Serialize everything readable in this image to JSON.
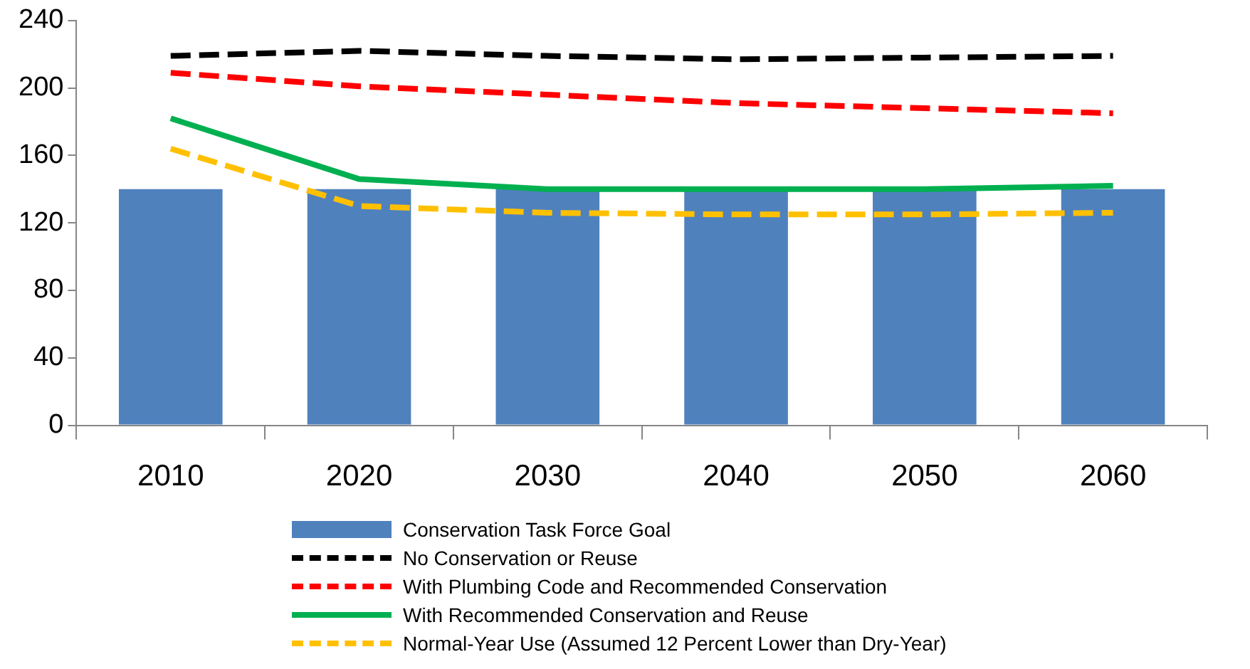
{
  "chart_data": {
    "type": "bar",
    "categories": [
      "2010",
      "2020",
      "2030",
      "2040",
      "2050",
      "2060"
    ],
    "ylim": [
      0,
      240
    ],
    "yticks": [
      0,
      40,
      80,
      120,
      160,
      200,
      240
    ],
    "grid": false,
    "legend": "bottom",
    "series": [
      {
        "name": "Conservation Task Force Goal",
        "color": "#4f81bd",
        "values": [
          140,
          140,
          140,
          140,
          140,
          140
        ]
      },
      {
        "name": "No Conservation or Reuse",
        "type": "line",
        "color": "#000000",
        "line_style": "dashed",
        "values": [
          219,
          222,
          219,
          217,
          218,
          219
        ]
      },
      {
        "name": "With Plumbing Code and Recommended Conservation",
        "type": "line",
        "color": "#ff0000",
        "line_style": "dashed",
        "values": [
          209,
          201,
          196,
          191,
          188,
          185
        ]
      },
      {
        "name": "With Recommended Conservation and Reuse",
        "type": "line",
        "color": "#00b050",
        "line_style": "solid",
        "values": [
          182,
          146,
          140,
          140,
          140,
          142
        ]
      },
      {
        "name": "Normal-Year Use (Assumed 12 Percent Lower than Dry-Year)",
        "type": "line",
        "color": "#ffc000",
        "line_style": "dashed",
        "values": [
          164,
          130,
          126,
          125,
          125,
          126
        ]
      }
    ]
  }
}
